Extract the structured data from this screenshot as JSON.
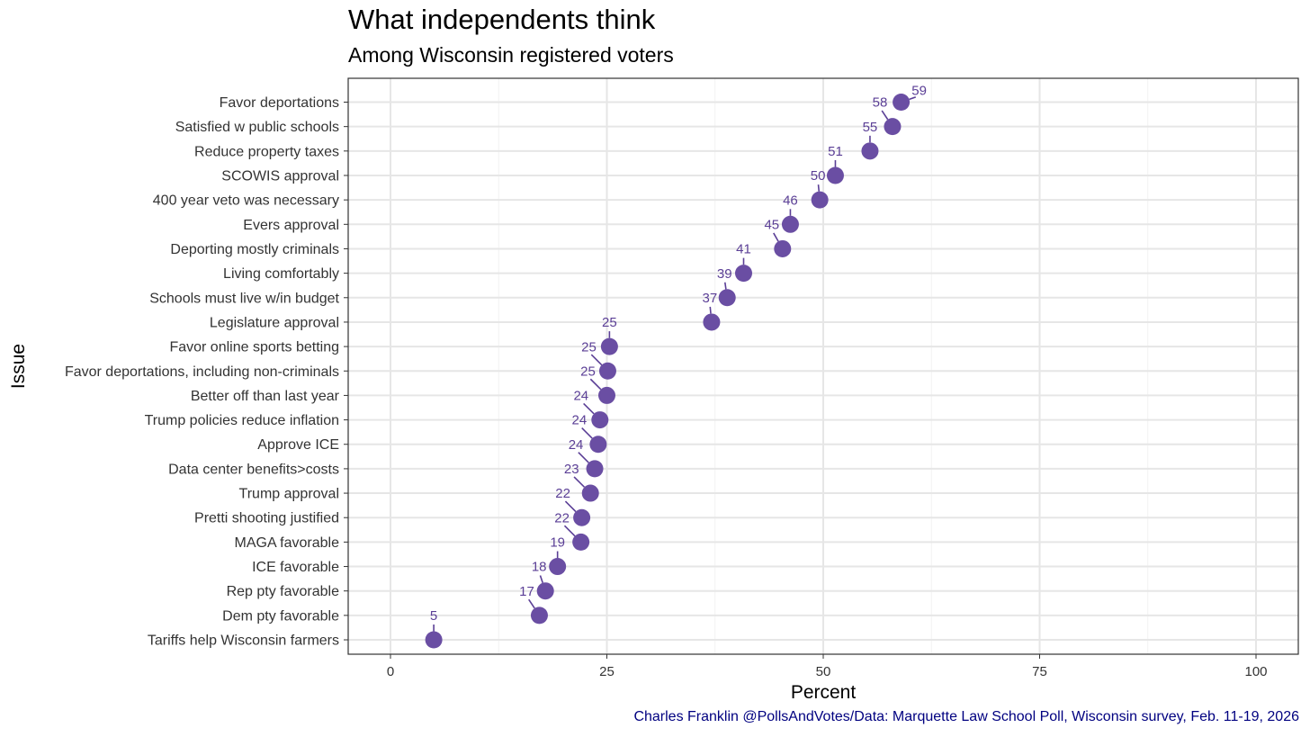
{
  "chart_data": {
    "type": "scatter",
    "title": "What independents think",
    "subtitle": "Among Wisconsin registered voters",
    "xlabel": "Percent",
    "ylabel": "Issue",
    "xlim": [
      0,
      100
    ],
    "xticks": [
      0,
      25,
      50,
      75,
      100
    ],
    "grid": true,
    "point_color": "#6a4ea3",
    "label_color": "#5b3f96",
    "caption": "Charles Franklin @PollsAndVotes/Data: Marquette Law School Poll, Wisconsin survey, Feb. 11-19, 2026",
    "categories": [
      "Favor deportations",
      "Satisfied w public schools",
      "Reduce property taxes",
      "SCOWIS approval",
      "400 year veto was necessary",
      "Evers approval",
      "Deporting mostly criminals",
      "Living comfortably",
      "Schools must live w/in budget",
      "Legislature approval",
      "Favor online sports betting",
      "Favor deportations, including non-criminals",
      "Better off than last year",
      "Trump policies reduce inflation",
      "Approve ICE",
      "Data center benefits>costs",
      "Trump approval",
      "Pretti shooting justified",
      "MAGA favorable",
      "ICE favorable",
      "Rep pty favorable",
      "Dem pty favorable",
      "Tariffs help Wisconsin farmers"
    ],
    "values": [
      59,
      58,
      55,
      51,
      50,
      46,
      45,
      41,
      39,
      37,
      25,
      25,
      25,
      24,
      24,
      24,
      23,
      22,
      22,
      19,
      18,
      17,
      5
    ],
    "point_x": [
      59.0,
      58.0,
      55.4,
      51.4,
      49.6,
      46.2,
      45.3,
      40.8,
      38.9,
      37.1,
      25.3,
      25.1,
      25.0,
      24.2,
      24.0,
      23.6,
      23.1,
      22.1,
      22.0,
      19.3,
      17.9,
      17.2,
      5.0
    ]
  }
}
